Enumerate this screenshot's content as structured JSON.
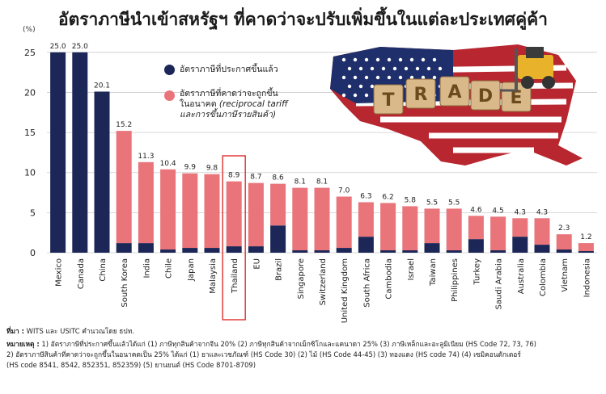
{
  "header": {
    "title": "อัตราภาษีนำเข้าสหรัฐฯ ที่คาดว่าจะปรับเพิ่มขึ้นในแต่ละประเทศคู่ค้า",
    "unit": "(%)"
  },
  "legend": {
    "current": "อัตราภาษีที่ประกาศขึ้นแล้ว",
    "expected_line1": "อัตราภาษีที่คาดว่าจะถูกขึ้น",
    "expected_line2": "ในอนาคต",
    "expected_line2_italic": "(reciprocal tariff",
    "expected_line3": "และการขึ้นภาษีรายสินค้า)"
  },
  "colors": {
    "current": "#1c2757",
    "expected": "#e9747a",
    "highlight": "#e03c3c",
    "grid": "#cccccc"
  },
  "illustration": {
    "name": "us-map-trade-war-illustration",
    "letters": [
      "T",
      "R",
      "A",
      "D",
      "E"
    ]
  },
  "chart_data": {
    "type": "bar",
    "stacked": true,
    "categories": [
      "Mexico",
      "Canada",
      "China",
      "South Korea",
      "India",
      "Chile",
      "Japan",
      "Malaysia",
      "Thailand",
      "EU",
      "Brazil",
      "Singapore",
      "Switzerland",
      "United Kingdom",
      "South Africa",
      "Cambodia",
      "Israel",
      "Taiwan",
      "Philippines",
      "Turkey",
      "Saudi Arabia",
      "Australia",
      "Colombia",
      "Vietnam",
      "Indonesia"
    ],
    "series": [
      {
        "name": "อัตราภาษีที่ประกาศขึ้นแล้ว",
        "values": [
          25.0,
          25.0,
          20.1,
          1.2,
          1.2,
          0.4,
          0.6,
          0.6,
          0.8,
          0.8,
          3.4,
          0.3,
          0.3,
          0.6,
          2.0,
          0.3,
          0.3,
          1.2,
          0.3,
          1.7,
          0.3,
          2.0,
          1.0,
          0.4,
          0.2
        ]
      },
      {
        "name": "อัตราภาษีที่คาดว่าจะถูกขึ้นในอนาคต",
        "values": [
          0,
          0,
          0,
          14.0,
          10.1,
          10.0,
          9.3,
          9.2,
          8.1,
          7.9,
          5.2,
          7.8,
          7.8,
          6.4,
          4.3,
          5.9,
          5.5,
          4.3,
          5.2,
          2.9,
          4.2,
          2.3,
          3.3,
          1.9,
          1.0
        ]
      }
    ],
    "totals": [
      "25.0",
      "25.0",
      "20.1",
      "15.2",
      "11.3",
      "10.4",
      "9.9",
      "9.8",
      "8.9",
      "8.7",
      "8.6",
      "8.1",
      "8.1",
      "7.0",
      "6.3",
      "6.2",
      "5.8",
      "5.5",
      "5.5",
      "4.6",
      "4.5",
      "4.3",
      "4.3",
      "2.3",
      "1.2"
    ],
    "highlight": "Thailand",
    "yticks": [
      "0",
      "5",
      "10",
      "15",
      "20",
      "25"
    ],
    "ylim": [
      0,
      27.5
    ],
    "grid": true
  },
  "footnotes": {
    "source_label": "ที่มา :",
    "source_text": " WITS และ USITC คำนวณโดย ธปท.",
    "note_label": "หมายเหตุ :",
    "note_line1": " 1) อัตราภาษีที่ประกาศขึ้นแล้วได้แก่ (1) ภาษีทุกสินค้าจากจีน 20% (2) ภาษีทุกสินค้าจากเม็กซิโกและแคนาดา 25% (3) ภาษีเหล็กและอะลูมิเนียม (HS Code 72, 73, 76)",
    "note_line2": "2) อัตราภาษีสินค้าที่คาดว่าจะถูกขึ้นในอนาคตเป็น 25% ได้แก่ (1) ยาและเวชภัณฑ์ (HS Code 30) (2) ไม้ (HS Code 44-45) (3) ทองแดง (HS code 74) (4) เซมิคอนดักเตอร์",
    "note_line3": "(HS code 8541, 8542, 852351, 852359) (5) ยานยนต์ (HS Code 8701-8709)"
  }
}
